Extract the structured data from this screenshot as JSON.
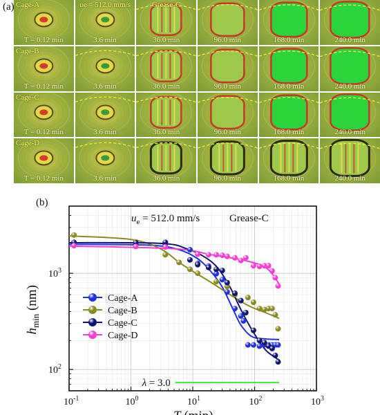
{
  "panel_a_label": "(a)",
  "panel_b_label": "(b)",
  "grid": {
    "row_labels": [
      "Cage-A",
      "Cage-B",
      "Cage-C",
      "Cage-D"
    ],
    "col_times": [
      "T = 0.12 min",
      "3.6 min",
      "36.0 min",
      "96.0 min",
      "168.0 min",
      "240.0 min"
    ],
    "top_ue": "ue = 512.0 mm/s",
    "top_grease": "Grease-C"
  },
  "chart_data": {
    "type": "scatter",
    "xlabel": "T (min)",
    "ylabel": "hmin (nm)",
    "xscale": "log",
    "yscale": "log",
    "xlim": [
      0.1,
      1000
    ],
    "ylim": [
      60,
      5000
    ],
    "x_ticks": [
      "10^-1",
      "10^0",
      "10^1",
      "10^2",
      "10^3"
    ],
    "y_ticks": [
      "10^2",
      "10^3"
    ],
    "annotations": [
      "ue = 512.0 mm/s",
      "Grease-C",
      "λ = 3.0"
    ],
    "lambda_line": {
      "x_start": 5.2,
      "x_end": 250,
      "y": 73,
      "label": "λ = 3.0",
      "color": "#3ee83e"
    },
    "legend_position": "bottom-left",
    "grid": true,
    "series": [
      {
        "name": "Cage-A",
        "color": "#2330e0",
        "points": [
          [
            0.12,
            2030
          ],
          [
            1.2,
            1960
          ],
          [
            3.6,
            1980
          ],
          [
            9,
            1760
          ],
          [
            12,
            1270
          ],
          [
            18,
            1190
          ],
          [
            24,
            990
          ],
          [
            30,
            860
          ],
          [
            36,
            640
          ],
          [
            48,
            430
          ],
          [
            60,
            360
          ],
          [
            66,
            320
          ],
          [
            78,
            180
          ],
          [
            96,
            180
          ],
          [
            120,
            175
          ],
          [
            144,
            180
          ],
          [
            168,
            180
          ],
          [
            192,
            180
          ],
          [
            216,
            180
          ],
          [
            240,
            180
          ]
        ],
        "fit": [
          [
            0.1,
            2000
          ],
          [
            2,
            1960
          ],
          [
            6,
            1760
          ],
          [
            12,
            1420
          ],
          [
            20,
            1030
          ],
          [
            30,
            720
          ],
          [
            45,
            420
          ],
          [
            60,
            290
          ],
          [
            90,
            220
          ],
          [
            150,
            208
          ],
          [
            250,
            205
          ]
        ]
      },
      {
        "name": "Cage-B",
        "color": "#8a8a25",
        "points": [
          [
            0.12,
            2500
          ],
          [
            1.2,
            2120
          ],
          [
            3.6,
            1560
          ],
          [
            6,
            1300
          ],
          [
            9,
            1100
          ],
          [
            12,
            1000
          ],
          [
            24,
            820
          ],
          [
            36,
            730
          ],
          [
            48,
            600
          ],
          [
            60,
            520
          ],
          [
            78,
            560
          ],
          [
            96,
            500
          ],
          [
            120,
            430
          ],
          [
            144,
            420
          ],
          [
            168,
            430
          ],
          [
            192,
            430
          ],
          [
            216,
            370
          ],
          [
            240,
            265
          ]
        ],
        "fit": [
          [
            0.1,
            2450
          ],
          [
            1,
            2250
          ],
          [
            3,
            1800
          ],
          [
            6,
            1300
          ],
          [
            10,
            1050
          ],
          [
            20,
            800
          ],
          [
            40,
            600
          ],
          [
            80,
            460
          ],
          [
            150,
            390
          ],
          [
            250,
            340
          ]
        ]
      },
      {
        "name": "Cage-C",
        "color": "#10146e",
        "points": [
          [
            0.12,
            2100
          ],
          [
            1.2,
            2080
          ],
          [
            3.6,
            2100
          ],
          [
            9,
            1380
          ],
          [
            12,
            1230
          ],
          [
            18,
            1150
          ],
          [
            24,
            1100
          ],
          [
            30,
            1070
          ],
          [
            36,
            800
          ],
          [
            48,
            620
          ],
          [
            60,
            520
          ],
          [
            72,
            390
          ],
          [
            96,
            255
          ],
          [
            120,
            200
          ],
          [
            144,
            190
          ],
          [
            168,
            175
          ],
          [
            192,
            165
          ],
          [
            216,
            140
          ],
          [
            240,
            120
          ]
        ],
        "fit": [
          [
            0.1,
            2080
          ],
          [
            3,
            2050
          ],
          [
            8,
            1800
          ],
          [
            15,
            1500
          ],
          [
            25,
            1150
          ],
          [
            40,
            720
          ],
          [
            60,
            420
          ],
          [
            90,
            260
          ],
          [
            150,
            160
          ],
          [
            250,
            125
          ]
        ]
      },
      {
        "name": "Cage-D",
        "color": "#f040d2",
        "points": [
          [
            0.12,
            1940
          ],
          [
            1.2,
            1900
          ],
          [
            3.6,
            1880
          ],
          [
            12,
            1580
          ],
          [
            18,
            1560
          ],
          [
            24,
            1560
          ],
          [
            30,
            1540
          ],
          [
            36,
            1500
          ],
          [
            48,
            1450
          ],
          [
            60,
            1360
          ],
          [
            72,
            1450
          ],
          [
            96,
            1200
          ],
          [
            120,
            1180
          ],
          [
            144,
            1200
          ],
          [
            168,
            1200
          ],
          [
            192,
            1060
          ],
          [
            216,
            900
          ],
          [
            240,
            740
          ]
        ],
        "fit": [
          [
            0.1,
            1920
          ],
          [
            5,
            1800
          ],
          [
            20,
            1560
          ],
          [
            50,
            1420
          ],
          [
            100,
            1280
          ],
          [
            150,
            1150
          ],
          [
            200,
            960
          ],
          [
            250,
            770
          ]
        ]
      }
    ]
  }
}
